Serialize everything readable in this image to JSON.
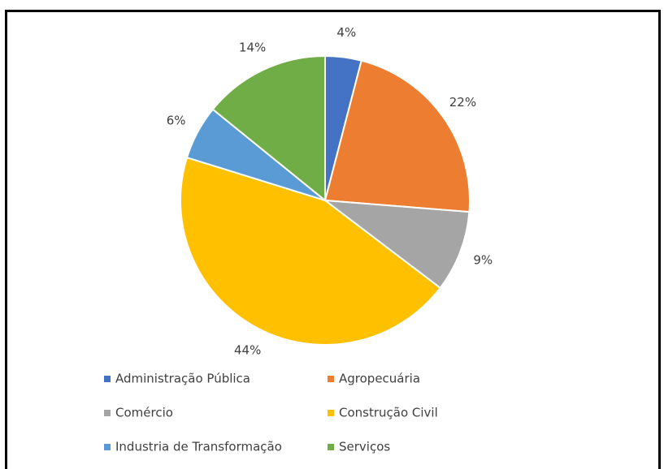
{
  "chart_data": {
    "type": "pie",
    "categories": [
      "Administração Pública",
      "Agropecuária",
      "Comércio",
      "Construção Civil",
      "Industria de Transformação",
      "Serviços"
    ],
    "values": [
      4,
      22,
      9,
      44,
      6,
      14
    ],
    "value_labels": [
      "4%",
      "22%",
      "9%",
      "44%",
      "6%",
      "14%"
    ],
    "colors": [
      "#4472c4",
      "#ed7d31",
      "#a5a5a5",
      "#ffc000",
      "#5b9bd5",
      "#70ad47"
    ],
    "legend": "bottom"
  }
}
